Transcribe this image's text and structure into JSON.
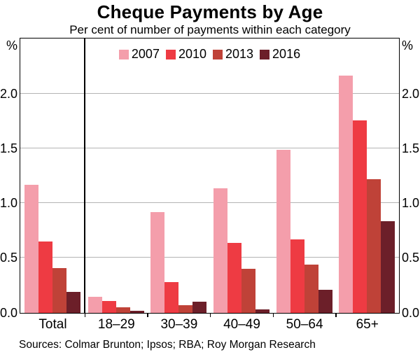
{
  "chart_data": {
    "type": "bar",
    "title": "Cheque Payments by Age",
    "subtitle": "Per cent of number of payments within each category",
    "unit_label": "%",
    "categories": [
      "Total",
      "18–29",
      "30–39",
      "40–49",
      "50–64",
      "65+"
    ],
    "series": [
      {
        "name": "2007",
        "color": "#F49EAB",
        "values": [
          1.17,
          0.15,
          0.92,
          1.14,
          1.49,
          2.17
        ]
      },
      {
        "name": "2010",
        "color": "#EE3B43",
        "values": [
          0.65,
          0.11,
          0.28,
          0.64,
          0.67,
          1.76
        ]
      },
      {
        "name": "2013",
        "color": "#BF4238",
        "values": [
          0.41,
          0.05,
          0.07,
          0.4,
          0.44,
          1.22
        ]
      },
      {
        "name": "2016",
        "color": "#6C1F29",
        "values": [
          0.19,
          0.02,
          0.1,
          0.03,
          0.21,
          0.84
        ]
      }
    ],
    "ylim": [
      0,
      2.5
    ],
    "yticks": [
      {
        "v": 0.0,
        "label": "0.0"
      },
      {
        "v": 0.5,
        "label": "0.5"
      },
      {
        "v": 1.0,
        "label": "1.0"
      },
      {
        "v": 1.5,
        "label": "1.5"
      },
      {
        "v": 2.0,
        "label": "2.0"
      }
    ],
    "grid": true,
    "legend_position": "top-center",
    "divider_after_category": "Total",
    "source": "Sources: Colmar Brunton; Ipsos; RBA; Roy Morgan Research"
  }
}
